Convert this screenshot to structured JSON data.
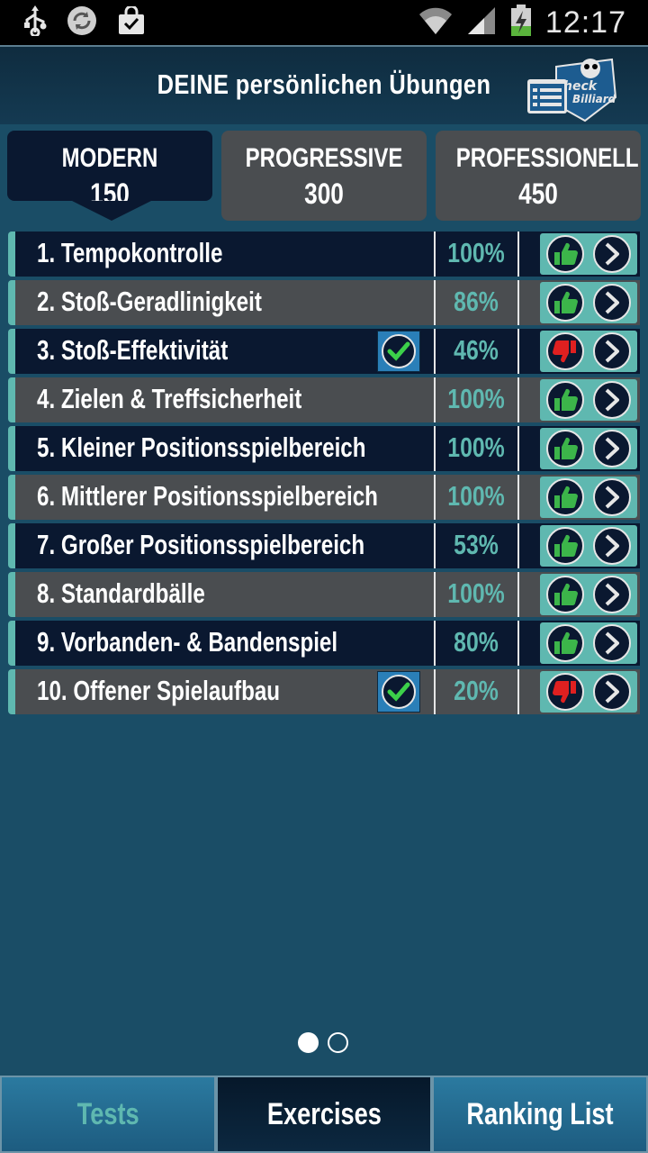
{
  "status_bar": {
    "time": "12:17",
    "icons": [
      "usb-icon",
      "sync-icon",
      "shopping-bag-icon",
      "wifi-icon",
      "signal-icon",
      "battery-charging-icon"
    ]
  },
  "header": {
    "title": "DEINE persönlichen Übungen",
    "logo_icon": "check-billiard-logo"
  },
  "colors": {
    "accent_teal": "#5fb8b0",
    "dark_row": "#0a1830",
    "light_row": "#4a4d50",
    "thumb_up": "#3cb54a",
    "thumb_down": "#e02020",
    "check_blue": "#2a7fb8"
  },
  "tabs": [
    {
      "name": "MODERN",
      "count": "150",
      "active": true
    },
    {
      "name": "PROGRESSIVE",
      "count": "300",
      "active": false
    },
    {
      "name": "PROFESSIONELL",
      "count": "450",
      "active": false
    }
  ],
  "exercises": [
    {
      "label": "1. Tempokontrolle",
      "percent": "100%",
      "checked": false,
      "rating": "thumb-up-icon"
    },
    {
      "label": "2. Stoß-Geradlinigkeit",
      "percent": "86%",
      "checked": false,
      "rating": "thumb-up-icon"
    },
    {
      "label": "3. Stoß-Effektivität",
      "percent": "46%",
      "checked": true,
      "rating": "thumb-down-icon"
    },
    {
      "label": "4. Zielen & Treffsicherheit",
      "percent": "100%",
      "checked": false,
      "rating": "thumb-up-icon"
    },
    {
      "label": "5. Kleiner Positionsspielbereich",
      "percent": "100%",
      "checked": false,
      "rating": "thumb-up-icon"
    },
    {
      "label": "6. Mittlerer Positionsspielbereich",
      "percent": "100%",
      "checked": false,
      "rating": "thumb-up-icon"
    },
    {
      "label": "7. Großer Positionsspielbereich",
      "percent": "53%",
      "checked": false,
      "rating": "thumb-up-icon"
    },
    {
      "label": "8. Standardbälle",
      "percent": "100%",
      "checked": false,
      "rating": "thumb-up-icon"
    },
    {
      "label": "9. Vorbanden- & Bandenspiel",
      "percent": "80%",
      "checked": false,
      "rating": "thumb-up-icon"
    },
    {
      "label": "10. Offener Spielaufbau",
      "percent": "20%",
      "checked": true,
      "rating": "thumb-down-icon"
    }
  ],
  "pager": {
    "pages": 2,
    "current": 1
  },
  "bottom_nav": {
    "tests": "Tests",
    "exercises": "Exercises",
    "ranking": "Ranking List"
  }
}
